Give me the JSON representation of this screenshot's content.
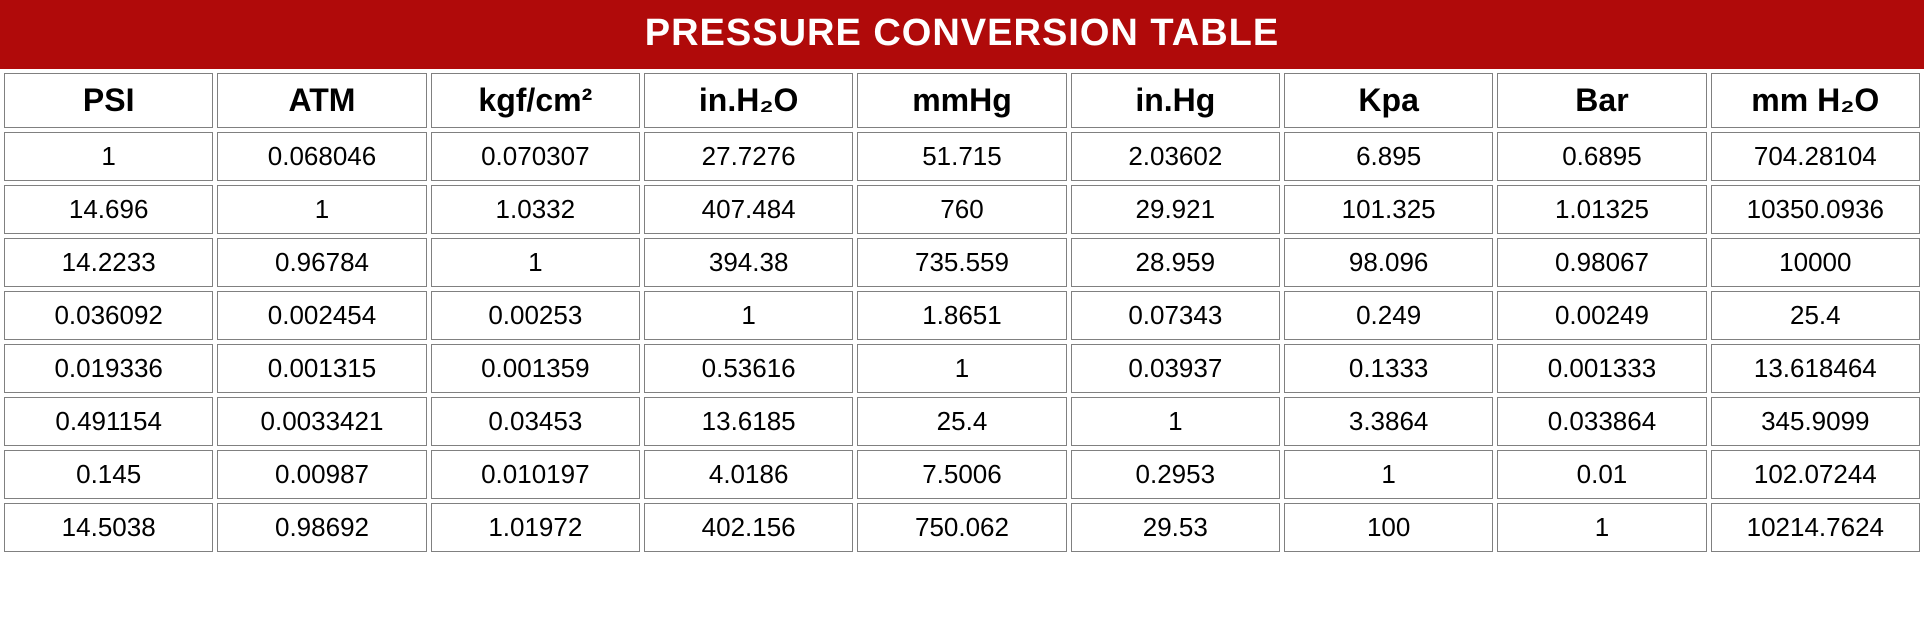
{
  "title": "PRESSURE CONVERSION TABLE",
  "colors": {
    "title_bg": "#b00a0a",
    "title_text": "#ffffff",
    "cell_border": "#808080",
    "cell_bg": "#ffffff",
    "text": "#000000",
    "page_bg": "#ffffff"
  },
  "table": {
    "type": "table",
    "columns": [
      "PSI",
      "ATM",
      "kgf/cm²",
      "in.H₂O",
      "mmHg",
      "in.Hg",
      "Kpa",
      "Bar",
      "mm H₂O"
    ],
    "rows": [
      [
        "1",
        "0.068046",
        "0.070307",
        "27.7276",
        "51.715",
        "2.03602",
        "6.895",
        "0.6895",
        "704.28104"
      ],
      [
        "14.696",
        "1",
        "1.0332",
        "407.484",
        "760",
        "29.921",
        "101.325",
        "1.01325",
        "10350.0936"
      ],
      [
        "14.2233",
        "0.96784",
        "1",
        "394.38",
        "735.559",
        "28.959",
        "98.096",
        "0.98067",
        "10000"
      ],
      [
        "0.036092",
        "0.002454",
        "0.00253",
        "1",
        "1.8651",
        "0.07343",
        "0.249",
        "0.00249",
        "25.4"
      ],
      [
        "0.019336",
        "0.001315",
        "0.001359",
        "0.53616",
        "1",
        "0.03937",
        "0.1333",
        "0.001333",
        "13.618464"
      ],
      [
        "0.491154",
        "0.0033421",
        "0.03453",
        "13.6185",
        "25.4",
        "1",
        "3.3864",
        "0.033864",
        "345.9099"
      ],
      [
        "0.145",
        "0.00987",
        "0.010197",
        "4.0186",
        "7.5006",
        "0.2953",
        "1",
        "0.01",
        "102.07244"
      ],
      [
        "14.5038",
        "0.98692",
        "1.01972",
        "402.156",
        "750.062",
        "29.53",
        "100",
        "1",
        "10214.7624"
      ]
    ],
    "header_fontsize": 32,
    "cell_fontsize": 26,
    "title_fontsize": 38,
    "border_width": 1,
    "cell_spacing": 4
  }
}
